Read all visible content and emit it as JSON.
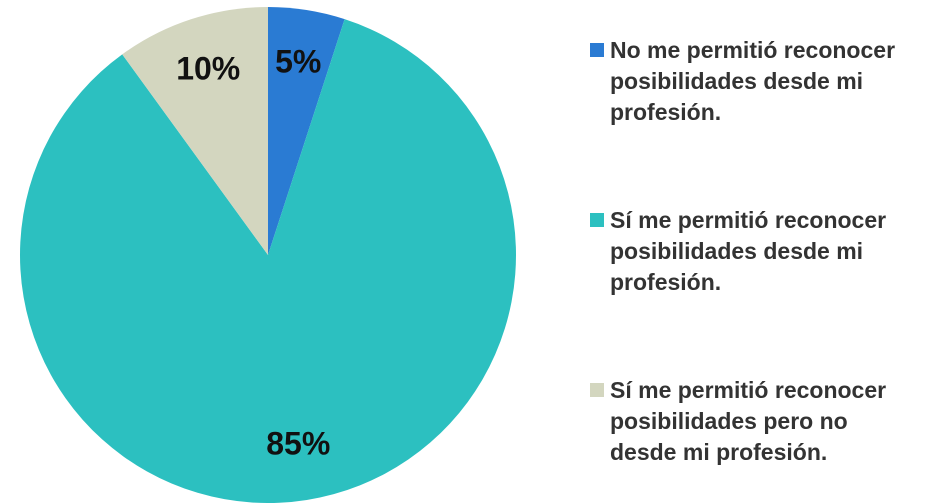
{
  "chart_data": {
    "type": "pie",
    "categories": [
      "No me permitió reconocer posibilidades desde mi profesión.",
      "Sí me permitió reconocer posibilidades desde mi profesión.",
      "Sí me permitió reconocer posibilidades pero no desde mi profesión."
    ],
    "values": [
      5,
      85,
      10
    ],
    "value_labels": [
      "5%",
      "85%",
      "10%"
    ],
    "colors": [
      "#2a7bd3",
      "#2cc0c0",
      "#d3d6bf"
    ]
  }
}
